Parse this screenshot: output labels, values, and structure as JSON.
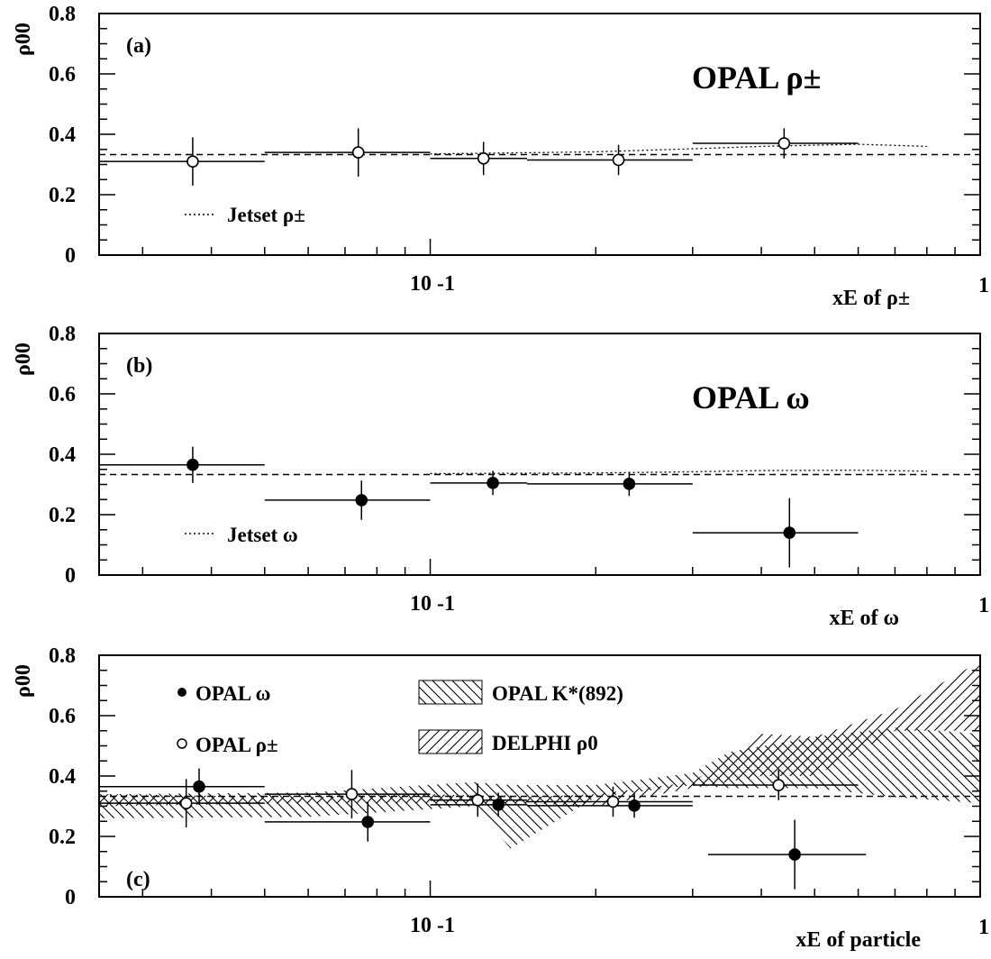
{
  "chart_data": [
    {
      "type": "scatter",
      "panel_label": "(a)",
      "title": "OPAL ρ±",
      "ylabel": "ρ00",
      "xlabel": "xE of ρ±",
      "x_scale": "log",
      "xlim": [
        0.025,
        1
      ],
      "ylim": [
        0,
        0.8
      ],
      "y_ticks": [
        "0",
        "0.2",
        "0.4",
        "0.6",
        "0.8"
      ],
      "x_tick_labels": [
        "10 -1",
        "1"
      ],
      "reference_line_y": 0.333,
      "series": [
        {
          "name": "OPAL ρ±",
          "marker": "open-circle",
          "points": [
            {
              "x": 0.037,
              "y": 0.31,
              "x_lo": 0.025,
              "x_hi": 0.05,
              "err": 0.08
            },
            {
              "x": 0.074,
              "y": 0.34,
              "x_lo": 0.05,
              "x_hi": 0.1,
              "err": 0.08
            },
            {
              "x": 0.125,
              "y": 0.32,
              "x_lo": 0.1,
              "x_hi": 0.15,
              "err": 0.055
            },
            {
              "x": 0.22,
              "y": 0.315,
              "x_lo": 0.15,
              "x_hi": 0.3,
              "err": 0.05
            },
            {
              "x": 0.44,
              "y": 0.37,
              "x_lo": 0.3,
              "x_hi": 0.6,
              "err": 0.05
            }
          ]
        },
        {
          "name": "Jetset ρ±",
          "style": "dotted",
          "x": [
            0.1,
            0.2,
            0.3,
            0.4,
            0.6,
            0.8
          ],
          "y": [
            0.335,
            0.342,
            0.352,
            0.36,
            0.367,
            0.36
          ]
        }
      ]
    },
    {
      "type": "scatter",
      "panel_label": "(b)",
      "title": "OPAL ω",
      "ylabel": "ρ00",
      "xlabel": "xE of ω",
      "x_scale": "log",
      "xlim": [
        0.025,
        1
      ],
      "ylim": [
        0,
        0.8
      ],
      "y_ticks": [
        "0",
        "0.2",
        "0.4",
        "0.6",
        "0.8"
      ],
      "x_tick_labels": [
        "10 -1",
        "1"
      ],
      "reference_line_y": 0.333,
      "series": [
        {
          "name": "OPAL ω",
          "marker": "filled-circle",
          "points": [
            {
              "x": 0.037,
              "y": 0.365,
              "x_lo": 0.025,
              "x_hi": 0.05,
              "err": 0.06
            },
            {
              "x": 0.075,
              "y": 0.248,
              "x_lo": 0.05,
              "x_hi": 0.1,
              "err": 0.065
            },
            {
              "x": 0.13,
              "y": 0.305,
              "x_lo": 0.1,
              "x_hi": 0.15,
              "err": 0.04
            },
            {
              "x": 0.23,
              "y": 0.302,
              "x_lo": 0.15,
              "x_hi": 0.3,
              "err": 0.04
            },
            {
              "x": 0.45,
              "y": 0.14,
              "x_lo": 0.3,
              "x_hi": 0.6,
              "err": 0.115
            }
          ]
        },
        {
          "name": "Jetset ω",
          "style": "dotted",
          "x": [
            0.1,
            0.2,
            0.3,
            0.4,
            0.6,
            0.8
          ],
          "y": [
            0.336,
            0.338,
            0.342,
            0.346,
            0.347,
            0.344
          ]
        }
      ]
    },
    {
      "type": "scatter",
      "panel_label": "(c)",
      "ylabel": "ρ00",
      "xlabel": "xE of particle",
      "x_scale": "log",
      "xlim": [
        0.025,
        1
      ],
      "ylim": [
        0,
        0.8
      ],
      "y_ticks": [
        "0",
        "0.2",
        "0.4",
        "0.6",
        "0.8"
      ],
      "x_tick_labels": [
        "10 -1",
        "1"
      ],
      "reference_line_y": 0.333,
      "series": [
        {
          "name": "OPAL ω",
          "marker": "filled-circle",
          "points": [
            {
              "x": 0.038,
              "y": 0.365,
              "x_lo": 0.025,
              "x_hi": 0.05,
              "err": 0.06
            },
            {
              "x": 0.077,
              "y": 0.248,
              "x_lo": 0.05,
              "x_hi": 0.1,
              "err": 0.065
            },
            {
              "x": 0.133,
              "y": 0.305,
              "x_lo": 0.1,
              "x_hi": 0.15,
              "err": 0.04
            },
            {
              "x": 0.235,
              "y": 0.302,
              "x_lo": 0.15,
              "x_hi": 0.3,
              "err": 0.04
            },
            {
              "x": 0.46,
              "y": 0.14,
              "x_lo": 0.32,
              "x_hi": 0.62,
              "err": 0.115
            }
          ]
        },
        {
          "name": "OPAL ρ±",
          "marker": "open-circle",
          "points": [
            {
              "x": 0.036,
              "y": 0.31,
              "x_lo": 0.025,
              "x_hi": 0.05,
              "err": 0.08
            },
            {
              "x": 0.072,
              "y": 0.34,
              "x_lo": 0.05,
              "x_hi": 0.1,
              "err": 0.08
            },
            {
              "x": 0.122,
              "y": 0.32,
              "x_lo": 0.1,
              "x_hi": 0.15,
              "err": 0.055
            },
            {
              "x": 0.215,
              "y": 0.315,
              "x_lo": 0.15,
              "x_hi": 0.3,
              "err": 0.05
            },
            {
              "x": 0.43,
              "y": 0.37,
              "x_lo": 0.3,
              "x_hi": 0.6,
              "err": 0.05
            }
          ]
        },
        {
          "name": "OPAL K*(892)",
          "fill": "hatched-band",
          "x": [
            0.025,
            0.06,
            0.12,
            0.14,
            0.2,
            0.3,
            0.35,
            0.5,
            0.7,
            1.0
          ],
          "y_lo": [
            0.26,
            0.265,
            0.3,
            0.16,
            0.33,
            0.37,
            0.36,
            0.36,
            0.33,
            0.31
          ],
          "y_hi": [
            0.34,
            0.345,
            0.38,
            0.37,
            0.37,
            0.41,
            0.48,
            0.53,
            0.56,
            0.54
          ]
        },
        {
          "name": "DELPHI ρ0",
          "fill": "hatched-band",
          "x": [
            0.025,
            0.06,
            0.1,
            0.15,
            0.2,
            0.3,
            0.4,
            0.5,
            0.7,
            1.0
          ],
          "y_lo": [
            0.3,
            0.31,
            0.31,
            0.31,
            0.3,
            0.36,
            0.4,
            0.4,
            0.55,
            0.55
          ],
          "y_hi": [
            0.34,
            0.33,
            0.34,
            0.33,
            0.34,
            0.38,
            0.54,
            0.53,
            0.62,
            0.78
          ]
        }
      ]
    }
  ]
}
